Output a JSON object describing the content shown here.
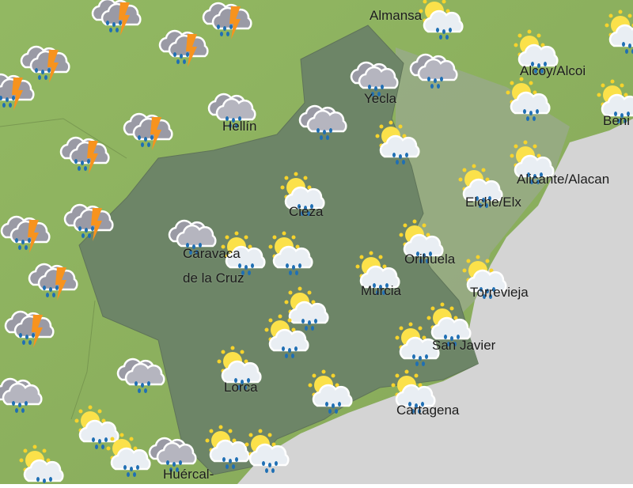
{
  "map": {
    "colors": {
      "land": "#8fb35e",
      "land_dark": "#7a9f4e",
      "region": "#6d8567",
      "coast_zone": "#9aa98e",
      "sea": "#d4d4d4"
    },
    "icon_types": [
      "sun-cloud-rain-icon",
      "cloud-rain-icon",
      "thunderstorm-icon"
    ],
    "cities": [
      {
        "name": "Almansa"
      },
      {
        "name": "Alcoy/Alcoi"
      },
      {
        "name": "Yecla"
      },
      {
        "name": "Hellín"
      },
      {
        "name": "Beni"
      },
      {
        "name": "Alicante/Alacan"
      },
      {
        "name": "Cieza"
      },
      {
        "name": "Elche/Elx"
      },
      {
        "name": "Caravaca"
      },
      {
        "name": "de la Cruz"
      },
      {
        "name": "Orihuela"
      },
      {
        "name": "Murcia"
      },
      {
        "name": "Torrevieja"
      },
      {
        "name": "San Javier"
      },
      {
        "name": "Lorca"
      },
      {
        "name": "Cartagena"
      },
      {
        "name": "Huércal-"
      }
    ]
  }
}
